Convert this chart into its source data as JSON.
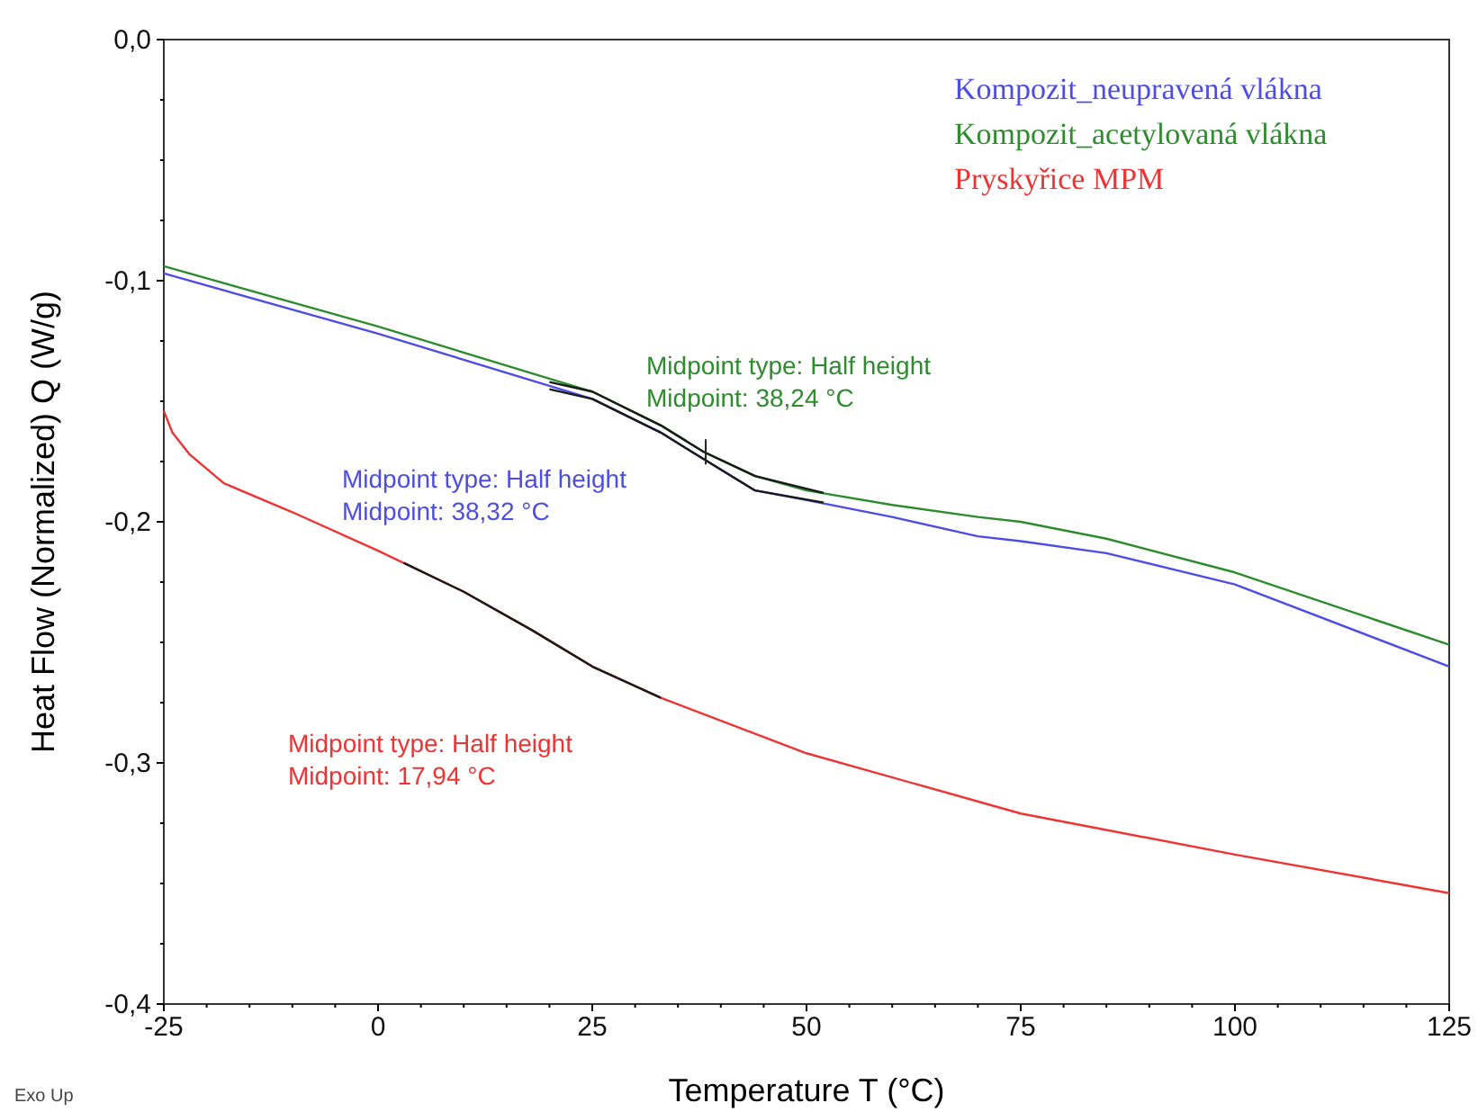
{
  "chart_data": {
    "type": "line",
    "xlabel": "Temperature T (°C)",
    "ylabel": "Heat Flow (Normalized) Q (W/g)",
    "xlim": [
      -25,
      125
    ],
    "ylim": [
      -0.4,
      0
    ],
    "xticks": [
      -25,
      {
        "value": -20,
        "label": null
      },
      {
        "value": -15,
        "label": null
      },
      {
        "value": -10,
        "label": null
      },
      {
        "value": -5,
        "label": null
      },
      0,
      {
        "value": 5,
        "label": null
      },
      {
        "value": 10,
        "label": null
      },
      {
        "value": 15,
        "label": null
      },
      {
        "value": 20,
        "label": null
      },
      25,
      {
        "value": 30,
        "label": null
      },
      {
        "value": 35,
        "label": null
      },
      {
        "value": 40,
        "label": null
      },
      {
        "value": 45,
        "label": null
      },
      50,
      {
        "value": 55,
        "label": null
      },
      {
        "value": 60,
        "label": null
      },
      {
        "value": 65,
        "label": null
      },
      {
        "value": 70,
        "label": null
      },
      75,
      {
        "value": 80,
        "label": null
      },
      {
        "value": 85,
        "label": null
      },
      {
        "value": 90,
        "label": null
      },
      {
        "value": 95,
        "label": null
      },
      100,
      {
        "value": 105,
        "label": null
      },
      {
        "value": 110,
        "label": null
      },
      {
        "value": 115,
        "label": null
      },
      {
        "value": 120,
        "label": null
      },
      125
    ],
    "yticks": [
      {
        "value": -0.4,
        "label": "-0,4"
      },
      {
        "value": -0.375,
        "label": null
      },
      {
        "value": -0.35,
        "label": null
      },
      {
        "value": -0.325,
        "label": null
      },
      {
        "value": -0.3,
        "label": "-0,3"
      },
      {
        "value": -0.275,
        "label": null
      },
      {
        "value": -0.25,
        "label": null
      },
      {
        "value": -0.225,
        "label": null
      },
      {
        "value": -0.2,
        "label": "-0,2"
      },
      {
        "value": -0.175,
        "label": null
      },
      {
        "value": -0.15,
        "label": null
      },
      {
        "value": -0.125,
        "label": null
      },
      {
        "value": -0.1,
        "label": "-0,1"
      },
      {
        "value": -0.075,
        "label": null
      },
      {
        "value": -0.05,
        "label": null
      },
      {
        "value": -0.025,
        "label": null
      },
      {
        "value": 0,
        "label": "0,0"
      }
    ],
    "legend": "top right",
    "series": [
      {
        "name": "Kompozit_neupravená vlákna",
        "color": "#4d4de6",
        "x": [
          -25,
          0,
          25,
          33,
          38,
          44,
          50,
          60,
          70,
          75,
          85,
          100,
          125
        ],
        "values": [
          -0.097,
          -0.122,
          -0.149,
          -0.163,
          -0.174,
          -0.187,
          -0.191,
          -0.198,
          -0.206,
          -0.208,
          -0.213,
          -0.226,
          -0.26
        ]
      },
      {
        "name": "Kompozit_acetylovaná vlákna",
        "color": "#2e8b2e",
        "x": [
          -25,
          0,
          25,
          33,
          38,
          44,
          50,
          60,
          70,
          75,
          85,
          100,
          125
        ],
        "values": [
          -0.094,
          -0.119,
          -0.146,
          -0.16,
          -0.171,
          -0.181,
          -0.187,
          -0.193,
          -0.198,
          -0.2,
          -0.207,
          -0.221,
          -0.251
        ]
      },
      {
        "name": "Pryskyřice MPM",
        "color": "#ee3333",
        "x": [
          -25,
          -24,
          -22,
          -18,
          -10,
          0,
          10,
          18,
          25,
          33,
          50,
          75,
          100,
          125
        ],
        "values": [
          -0.154,
          -0.163,
          -0.172,
          -0.184,
          -0.196,
          -0.212,
          -0.229,
          -0.245,
          -0.26,
          -0.273,
          -0.296,
          -0.321,
          -0.338,
          -0.354
        ]
      },
      {
        "color": "#1a1a1a",
        "x": [
          20,
          25,
          33,
          38,
          44,
          52
        ],
        "values": [
          -0.145,
          -0.149,
          -0.163,
          -0.174,
          -0.187,
          -0.192
        ]
      },
      {
        "color": "#1a1a1a",
        "x": [
          20,
          25,
          33,
          38,
          44,
          52
        ],
        "values": [
          -0.142,
          -0.146,
          -0.16,
          -0.171,
          -0.181,
          -0.188
        ]
      },
      {
        "color": "#1a1a1a",
        "x": [
          3,
          10,
          18,
          25,
          33
        ],
        "values": [
          -0.217,
          -0.229,
          -0.245,
          -0.26,
          -0.273
        ]
      }
    ],
    "annotations": [
      "Midpoint type: Half height\nMidpoint: 38,32 °C",
      {
        "text": "Midpoint type: Half height\nMidpoint: 38,24 °C",
        "x": 38.24,
        "y": -0.171
      },
      "Midpoint type: Half height\nMidpoint: 17,94 °C",
      "Exo Up"
    ]
  }
}
